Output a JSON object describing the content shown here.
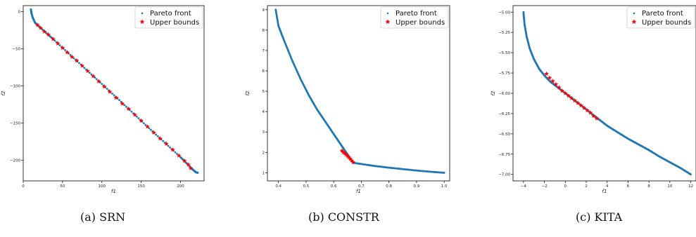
{
  "figure": {
    "captions": [
      "(a)  SRN",
      "(b)  CONSTR",
      "(c)  KITA"
    ]
  },
  "colors": {
    "pareto": "#1f77b4",
    "upper": "#ff0000",
    "axis": "#000000",
    "legend_border": "#cccccc"
  },
  "chart_data": [
    {
      "type": "scatter",
      "name": "SRN",
      "xlabel": "f1",
      "ylabel": "f2",
      "xlim": [
        0,
        230
      ],
      "ylim": [
        -228,
        8
      ],
      "xticks": [
        0,
        50,
        100,
        150,
        200
      ],
      "xtick_labels": [
        "0",
        "50",
        "100",
        "150",
        "200"
      ],
      "yticks": [
        0,
        -50,
        -100,
        -150,
        -200
      ],
      "ytick_labels": [
        "0",
        "−50",
        "−100",
        "−150",
        "−200"
      ],
      "legend": [
        "Pareto front",
        "Upper bounds"
      ],
      "legend_position": "top-right",
      "series": [
        {
          "name": "Pareto front",
          "marker": "dot",
          "x": [
            9.7,
            10.5,
            12.0,
            15.0,
            20.0,
            40.0,
            80.0,
            120.0,
            160.0,
            200.0,
            215.0,
            218.0,
            220.0,
            222.0
          ],
          "y": [
            3.0,
            -2.0,
            -8.0,
            -15.0,
            -20.0,
            -39.0,
            -78.0,
            -117.0,
            -157.0,
            -196.0,
            -212.0,
            -215.0,
            -216.5,
            -217.0
          ]
        },
        {
          "name": "Upper bounds",
          "marker": "star",
          "x": [
            18,
            22,
            27,
            32,
            38,
            44,
            50,
            56,
            62,
            68,
            75,
            82,
            89,
            96,
            103,
            110,
            118,
            126,
            134,
            142,
            150,
            158,
            166,
            174,
            182,
            190,
            198,
            205,
            210,
            213
          ],
          "y": [
            -18,
            -22,
            -27,
            -31,
            -37,
            -43,
            -49,
            -55,
            -61,
            -66,
            -73,
            -80,
            -87,
            -94,
            -101,
            -108,
            -116,
            -124,
            -131,
            -139,
            -147,
            -155,
            -163,
            -171,
            -178,
            -186,
            -194,
            -201,
            -206,
            -211
          ]
        }
      ]
    },
    {
      "type": "scatter",
      "name": "CONSTR",
      "xlabel": "f1",
      "ylabel": "f2",
      "xlim": [
        0.36,
        1.02
      ],
      "ylim": [
        0.6,
        9.2
      ],
      "xticks": [
        0.4,
        0.5,
        0.6,
        0.7,
        0.8,
        0.9,
        1.0
      ],
      "xtick_labels": [
        "0.4",
        "0.5",
        "0.6",
        "0.7",
        "0.8",
        "0.9",
        "1.0"
      ],
      "yticks": [
        1,
        2,
        3,
        4,
        5,
        6,
        7,
        8,
        9
      ],
      "ytick_labels": [
        "1",
        "2",
        "3",
        "4",
        "5",
        "6",
        "7",
        "8",
        "9"
      ],
      "legend": [
        "Pareto front",
        "Upper bounds"
      ],
      "legend_position": "top-right",
      "series": [
        {
          "name": "Pareto front",
          "marker": "dot",
          "x": [
            0.39,
            0.4,
            0.42,
            0.45,
            0.48,
            0.51,
            0.54,
            0.57,
            0.6,
            0.63,
            0.65,
            0.67,
            0.7,
            0.75,
            0.8,
            0.85,
            0.9,
            0.95,
            1.0
          ],
          "y": [
            9.0,
            8.2,
            7.5,
            6.5,
            5.6,
            4.8,
            4.1,
            3.5,
            2.9,
            2.3,
            1.9,
            1.49,
            1.43,
            1.33,
            1.25,
            1.18,
            1.11,
            1.05,
            1.0
          ]
        },
        {
          "name": "Upper bounds",
          "marker": "star",
          "x": [
            0.63,
            0.635,
            0.64,
            0.645,
            0.65,
            0.655,
            0.66,
            0.665,
            0.67
          ],
          "y": [
            2.08,
            2.0,
            1.95,
            1.88,
            1.82,
            1.75,
            1.68,
            1.6,
            1.52
          ]
        }
      ]
    },
    {
      "type": "scatter",
      "name": "KITA",
      "xlabel": "f1",
      "ylabel": "f2",
      "xlim": [
        -5,
        12.5
      ],
      "ylim": [
        -7.08,
        -4.92
      ],
      "xticks": [
        -4,
        -2,
        0,
        2,
        4,
        6,
        8,
        10,
        12
      ],
      "xtick_labels": [
        "−4",
        "−2",
        "0",
        "2",
        "4",
        "6",
        "8",
        "10",
        "12"
      ],
      "yticks": [
        -5.0,
        -5.25,
        -5.5,
        -5.75,
        -6.0,
        -6.25,
        -6.5,
        -6.75,
        -7.0
      ],
      "ytick_labels": [
        "−5.00",
        "−5.25",
        "−5.50",
        "−5.75",
        "−6.00",
        "−6.25",
        "−6.50",
        "−6.75",
        "−7.00"
      ],
      "legend": [
        "Pareto front",
        "Upper bounds"
      ],
      "legend_position": "top-right",
      "series": [
        {
          "name": "Pareto front",
          "marker": "dot",
          "x": [
            -4.0,
            -3.9,
            -3.7,
            -3.4,
            -3.0,
            -2.5,
            -2.0,
            -1.5,
            -1.0,
            0.0,
            1.0,
            2.0,
            3.0,
            4.0,
            5.0,
            6.0,
            7.0,
            8.0,
            9.0,
            10.0,
            11.0,
            12.0
          ],
          "y": [
            -5.0,
            -5.15,
            -5.3,
            -5.45,
            -5.58,
            -5.7,
            -5.78,
            -5.85,
            -5.9,
            -6.0,
            -6.1,
            -6.2,
            -6.3,
            -6.4,
            -6.48,
            -6.56,
            -6.63,
            -6.7,
            -6.78,
            -6.85,
            -6.92,
            -7.0
          ]
        },
        {
          "name": "Upper bounds",
          "marker": "star",
          "x": [
            -1.8,
            -1.5,
            -1.2,
            -0.9,
            -0.6,
            -0.3,
            0.0,
            0.3,
            0.6,
            0.9,
            1.2,
            1.5,
            1.8,
            2.1,
            2.4,
            2.7,
            3.0
          ],
          "y": [
            -5.76,
            -5.81,
            -5.85,
            -5.89,
            -5.93,
            -5.97,
            -6.0,
            -6.03,
            -6.06,
            -6.09,
            -6.12,
            -6.15,
            -6.18,
            -6.21,
            -6.24,
            -6.28,
            -6.31
          ]
        }
      ]
    }
  ]
}
